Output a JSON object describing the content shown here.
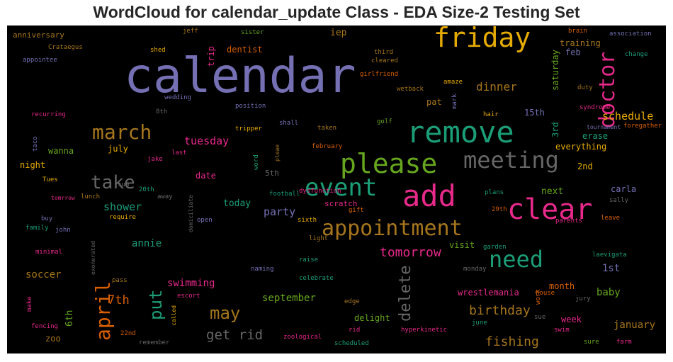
{
  "title": "WordCloud for calendar_update Class - EDA Size-2 Testing Set",
  "colors": {
    "purple": "#7570b3",
    "teal": "#1b9e77",
    "orange": "#d95f02",
    "magenta": "#e7298a",
    "green": "#66a61e",
    "gold": "#e6ab02",
    "brown": "#a6761d",
    "gray": "#666666"
  },
  "words": {
    "calendar": "calendar",
    "friday": "friday",
    "remove": "remove",
    "please": "please",
    "meeting": "meeting",
    "clear": "clear",
    "add": "add",
    "event": "event",
    "appointment": "appointment",
    "march": "march",
    "take": "take",
    "doctor": "doctor",
    "need": "need",
    "april": "april",
    "put": "put",
    "may": "may",
    "delete": "delete",
    "tomorrow": "tomorrow",
    "birthday": "birthday",
    "fishing": "fishing",
    "get_rid": "get rid",
    "schedule": "schedule",
    "dinner": "dinner",
    "7th": "7th",
    "tuesday": "tuesday",
    "shower": "shower",
    "party": "party",
    "soccer": "soccer",
    "september": "september",
    "swimming": "swimming",
    "annie": "annie",
    "january": "january",
    "baby": "baby",
    "today": "today",
    "wrestlemania": "wrestlemania",
    "1st": "1st",
    "trip": "trip",
    "training": "training",
    "saturday": "saturday",
    "iep": "iep",
    "dentist": "dentist",
    "pat": "pat",
    "15th": "15th",
    "erase": "erase",
    "everything": "everything",
    "next": "next",
    "carla": "carla",
    "2nd": "2nd",
    "6th": "6th",
    "3rd": "3rd",
    "feb": "feb",
    "week": "week",
    "month": "month",
    "delight": "delight",
    "visit": "visit",
    "zoo": "zoo",
    "july": "july",
    "wanna": "wanna",
    "night": "night",
    "date": "date",
    "5th": "5th",
    "anniversary": "anniversary",
    "jeff": "jeff",
    "sister": "sister",
    "brain": "brain",
    "association": "association",
    "change": "change",
    "Crataegus": "Crataegus",
    "shed": "shed",
    "third": "third",
    "cleared": "cleared",
    "girlfriend": "girlfriend",
    "appointee": "appointee",
    "amaze": "amaze",
    "wetback": "wetback",
    "mark": "mark",
    "duty": "duty",
    "wedding": "wedding",
    "position": "position",
    "syndrome": "syndrome",
    "recurring": "recurring",
    "8th": "8th",
    "hair": "hair",
    "golf": "golf",
    "shall": "shall",
    "taken": "taken",
    "tripper": "tripper",
    "foregather": "foregather",
    "tournament": "tournament",
    "taco": "taco",
    "plead": "pleae",
    "february": "february",
    "last": "last",
    "word": "word",
    "jake": "jake",
    "dysfunction": "dysfunction",
    "Tues": "Tues",
    "sum": "sum",
    "20th": "20th",
    "away": "away",
    "tomrrow": "tomrrow",
    "lunch": "lunch",
    "football": "football",
    "scratch": "scratch",
    "plans": "plans",
    "sally": "sally",
    "buy": "buy",
    "require": "require",
    "gift": "gift",
    "29th": "29th",
    "leave": "leave",
    "family": "family",
    "john": "john",
    "domiciliate": "domiciliate",
    "open": "open",
    "sixth": "sixth",
    "parents": "parents",
    "light": "light",
    "garden": "garden",
    "minimal": "minimal",
    "exonerated": "exonerated",
    "raise": "raise",
    "laevigata": "laevigata",
    "naming": "naming",
    "monday": "monday",
    "pass": "pass",
    "celebrate": "celebrate",
    "house": "house",
    "escort": "escort",
    "work": "work",
    "jury": "jury",
    "make": "make",
    "edge": "edge",
    "fencing": "fencing",
    "called": "called",
    "sue": "sue",
    "22nd": "22nd",
    "rid": "rid",
    "hyperkinetic": "hyperkinetic",
    "june": "june",
    "swim": "swim",
    "remember": "remember",
    "zoological": "zoological",
    "scheduled": "scheduled",
    "sure": "sure",
    "farm": "farm"
  }
}
